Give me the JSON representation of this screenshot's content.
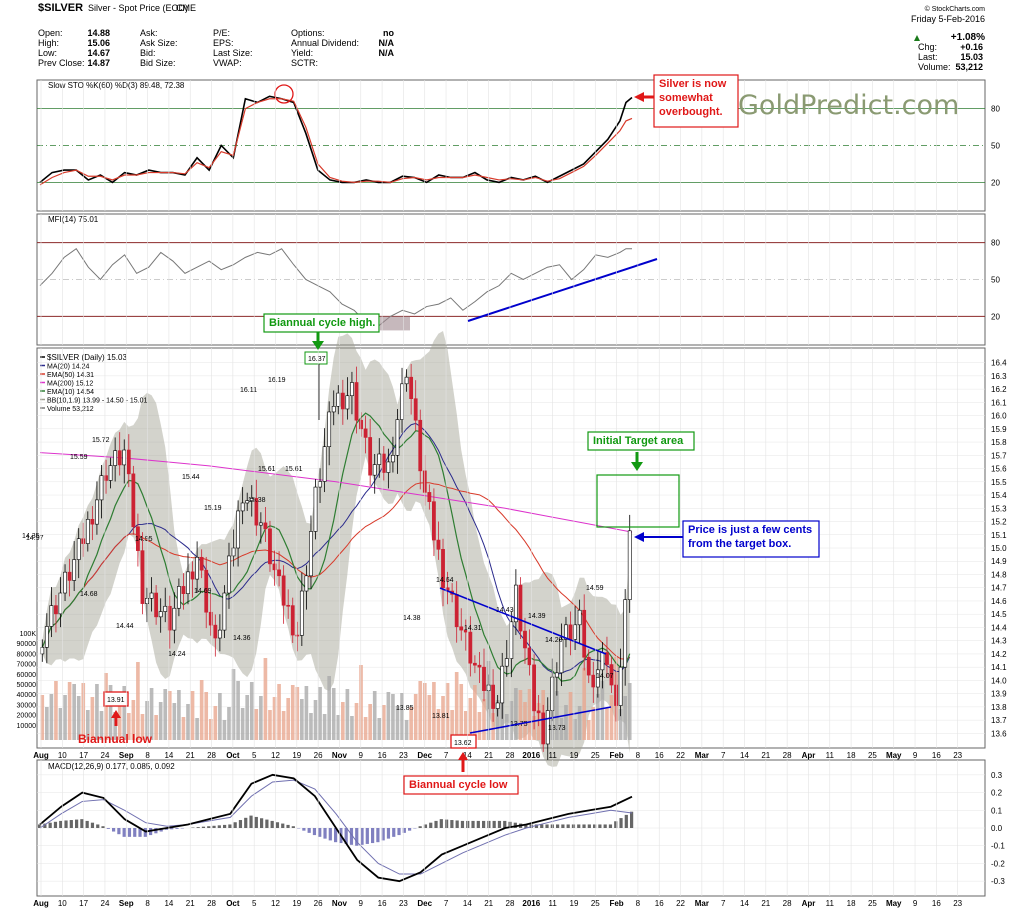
{
  "header": {
    "symbol": "$SILVER",
    "desc": "Silver - Spot Price (EOD)",
    "exch": "CME",
    "credit": "© StockCharts.com",
    "date": "Friday  5-Feb-2016",
    "change_pct": "+1.08%",
    "quote": [
      {
        "k": "Open:",
        "v": "14.88"
      },
      {
        "k": "High:",
        "v": "15.06"
      },
      {
        "k": "Low:",
        "v": "14.67"
      },
      {
        "k": "Prev Close:",
        "v": "14.87"
      }
    ],
    "quote2": [
      {
        "k": "Ask:",
        "v": ""
      },
      {
        "k": "Ask Size:",
        "v": ""
      },
      {
        "k": "Bid:",
        "v": ""
      },
      {
        "k": "Bid Size:",
        "v": ""
      }
    ],
    "quote3": [
      {
        "k": "P/E:",
        "v": ""
      },
      {
        "k": "EPS:",
        "v": ""
      },
      {
        "k": "Last Size:",
        "v": ""
      },
      {
        "k": "VWAP:",
        "v": ""
      }
    ],
    "quote4": [
      {
        "k": "Options:",
        "v": "no"
      },
      {
        "k": "Annual Dividend:",
        "v": "N/A"
      },
      {
        "k": "Yield:",
        "v": "N/A"
      },
      {
        "k": "SCTR:",
        "v": ""
      }
    ],
    "right": [
      {
        "k": "Chg:",
        "v": "+0.16"
      },
      {
        "k": "Last:",
        "v": "15.03"
      },
      {
        "k": "Volume:",
        "v": "53,212"
      }
    ]
  },
  "watermark": "GoldPredict.com",
  "colors": {
    "up": "#000000",
    "down": "#cc2233",
    "ma20": "#2a2a8c",
    "ema50": "#d83a2a",
    "ma200": "#dd33cc",
    "ema10": "#2e7d32",
    "bb": "#9e9e8e",
    "panel": "#ffffff",
    "blue_annot": "#0000cc",
    "red_annot": "#e01818",
    "green_annot": "#119911"
  },
  "x_axis": [
    "Aug",
    "10",
    "17",
    "24",
    "Sep",
    "8",
    "14",
    "21",
    "28",
    "Oct",
    "5",
    "12",
    "19",
    "26",
    "Nov",
    "9",
    "16",
    "23",
    "Dec",
    "7",
    "14",
    "21",
    "28",
    "2016",
    "11",
    "19",
    "25",
    "Feb",
    "8",
    "16",
    "22",
    "Mar",
    "7",
    "14",
    "21",
    "28",
    "Apr",
    "11",
    "18",
    "25",
    "May",
    "9",
    "16",
    "23"
  ],
  "sto_panel": {
    "legend": "Slow STO %K(60) %D(3) 89.48, 72.38",
    "levels": [
      "80",
      "50",
      "20"
    ],
    "annotation": "Silver is now\nsomewhat\noverbought."
  },
  "mfi_panel": {
    "legend": "MFI(14) 75.01",
    "levels": [
      "80",
      "50",
      "20"
    ]
  },
  "price_panel": {
    "legend": [
      "$SILVER (Daily) 15.03",
      "MA(20) 14.24",
      "EMA(50) 14.31",
      "MA(200) 15.12",
      "EMA(10) 14.54",
      "BB(10,1.9) 13.99 - 14.50 - 15.01",
      "Volume 53,212"
    ],
    "y_ticks": [
      "16.4",
      "16.3",
      "16.2",
      "16.1",
      "16.0",
      "15.9",
      "15.8",
      "15.7",
      "15.6",
      "15.5",
      "15.4",
      "15.3",
      "15.2",
      "15.1",
      "15.0",
      "14.9",
      "14.8",
      "14.7",
      "14.6",
      "14.5",
      "14.4",
      "14.3",
      "14.2",
      "14.1",
      "14.0",
      "13.9",
      "13.8",
      "13.7",
      "13.6"
    ],
    "vol_ticks": [
      "100K",
      "90000",
      "80000",
      "70000",
      "60000",
      "50000",
      "40000",
      "30000",
      "20000",
      "10000"
    ],
    "price_labels": [
      "14.35",
      "14.97",
      "15.59",
      "15.72",
      "14.68",
      "14.44",
      "14.95",
      "14.24",
      "15.44",
      "15.19",
      "14.69",
      "14.36",
      "15.38",
      "16.11",
      "16.19",
      "15.61",
      "15.61",
      "16.37",
      "14.38",
      "14.64",
      "13.85",
      "13.81",
      "14.31",
      "14.43",
      "14.39",
      "13.75",
      "14.20",
      "13.73",
      "14.59",
      "14.07",
      "13.91",
      "13.62"
    ],
    "annotations": {
      "cycle_high": "Biannual cycle high.",
      "target": "Initial Target area",
      "price_note": "Price is just a few cents\nfrom the target box.",
      "low1": "Biannual low",
      "low2": "Biannual cycle low"
    }
  },
  "macd_panel": {
    "legend": "MACD(12,26,9) 0.177, 0.085, 0.092",
    "levels": [
      "0.3",
      "0.2",
      "0.1",
      "0.0",
      "-0.1",
      "-0.2",
      "-0.3"
    ]
  },
  "chart_data": [
    {
      "type": "line",
      "title": "Slow STO %K(60) %D(3)",
      "ylim": [
        0,
        100
      ],
      "x": [
        0,
        4,
        8,
        12,
        16,
        20,
        24,
        28,
        32,
        36,
        40,
        44,
        48,
        52,
        56,
        60,
        64,
        68,
        72,
        76,
        80,
        84,
        88,
        92,
        96,
        100,
        104,
        108,
        112,
        116,
        120,
        124,
        128,
        132,
        136,
        140,
        144,
        148,
        152,
        156,
        160,
        164,
        168,
        172,
        176,
        180,
        184,
        188,
        192,
        194,
        196
      ],
      "series": [
        {
          "name": "%K",
          "values": [
            20,
            28,
            30,
            30,
            22,
            26,
            20,
            28,
            26,
            30,
            28,
            28,
            26,
            40,
            30,
            50,
            40,
            88,
            85,
            90,
            88,
            85,
            60,
            30,
            22,
            20,
            20,
            22,
            20,
            20,
            25,
            24,
            20,
            26,
            24,
            24,
            28,
            22,
            20,
            24,
            22,
            25,
            20,
            25,
            30,
            35,
            45,
            55,
            70,
            85,
            89
          ]
        },
        {
          "name": "%D",
          "values": [
            18,
            24,
            28,
            30,
            25,
            25,
            22,
            26,
            26,
            28,
            28,
            28,
            27,
            36,
            32,
            45,
            42,
            80,
            85,
            88,
            88,
            86,
            65,
            35,
            24,
            21,
            20,
            21,
            21,
            20,
            23,
            24,
            22,
            24,
            24,
            24,
            26,
            24,
            22,
            23,
            22,
            24,
            21,
            23,
            28,
            33,
            42,
            52,
            62,
            70,
            72
          ]
        }
      ]
    },
    {
      "type": "line",
      "title": "MFI(14)",
      "ylim": [
        0,
        100
      ],
      "x": [
        0,
        4,
        8,
        12,
        16,
        20,
        24,
        28,
        32,
        36,
        40,
        44,
        48,
        52,
        56,
        60,
        64,
        68,
        72,
        76,
        80,
        84,
        88,
        92,
        96,
        100,
        104,
        108,
        112,
        116,
        120,
        124,
        128,
        132,
        136,
        140,
        144,
        148,
        152,
        156,
        160,
        164,
        168,
        172,
        176,
        180,
        184,
        188,
        192,
        194,
        196
      ],
      "series": [
        {
          "name": "MFI",
          "values": [
            45,
            55,
            68,
            75,
            60,
            50,
            62,
            70,
            55,
            60,
            72,
            65,
            55,
            60,
            65,
            58,
            62,
            68,
            72,
            70,
            75,
            62,
            50,
            45,
            40,
            30,
            25,
            15,
            12,
            20,
            25,
            22,
            28,
            30,
            35,
            25,
            32,
            40,
            45,
            55,
            50,
            55,
            60,
            62,
            50,
            58,
            70,
            68,
            72,
            75,
            75
          ]
        },
        {
          "name": "Trend",
          "values": [
            null,
            null,
            null,
            null,
            null,
            null,
            null,
            null,
            null,
            null,
            null,
            null,
            null,
            null,
            null,
            null,
            null,
            null,
            null,
            null,
            null,
            null,
            null,
            null,
            null,
            null,
            null,
            null,
            null,
            null,
            null,
            null,
            20,
            null,
            null,
            null,
            null,
            null,
            null,
            null,
            null,
            null,
            null,
            null,
            null,
            null,
            null,
            null,
            null,
            null,
            72
          ]
        }
      ]
    },
    {
      "type": "line",
      "title": "$SILVER (Daily)",
      "ylim": [
        13.55,
        16.45
      ],
      "x_labels": [
        "Aug",
        "Sep",
        "Oct",
        "Nov",
        "Dec",
        "2016",
        "Feb"
      ],
      "series": [
        {
          "name": "$SILVER",
          "values": [
            14.35,
            14.97,
            15.59,
            15.72,
            14.68,
            14.44,
            14.95,
            14.24,
            15.44,
            15.19,
            14.69,
            14.36,
            15.38,
            16.11,
            16.19,
            15.61,
            15.61,
            16.37,
            14.38,
            14.64,
            13.85,
            13.81,
            14.31,
            14.43,
            14.39,
            13.75,
            14.2,
            13.73,
            14.59,
            14.07,
            13.91,
            13.62,
            15.03
          ]
        },
        {
          "name": "MA(200)",
          "values": [
            15.72,
            15.7,
            15.68,
            15.65,
            15.62,
            15.58,
            15.54,
            15.5,
            15.45,
            15.4,
            15.35,
            15.3,
            15.24,
            15.18,
            15.12
          ]
        }
      ]
    },
    {
      "type": "bar",
      "title": "MACD(12,26,9)",
      "ylim": [
        -0.35,
        0.35
      ],
      "series": [
        {
          "name": "MACD",
          "values": [
            0.02,
            0.12,
            0.2,
            0.17,
            0.05,
            -0.02,
            0.0,
            0.02,
            0.05,
            0.08,
            0.25,
            0.3,
            0.28,
            0.18,
            0.0,
            -0.18,
            -0.28,
            -0.3,
            -0.25,
            -0.15,
            -0.1,
            -0.05,
            0.0,
            0.02,
            0.05,
            0.08,
            0.1,
            0.12,
            0.177
          ]
        },
        {
          "name": "Signal",
          "values": [
            0.0,
            0.08,
            0.15,
            0.16,
            0.1,
            0.03,
            0.01,
            0.02,
            0.04,
            0.06,
            0.18,
            0.26,
            0.27,
            0.22,
            0.08,
            -0.08,
            -0.2,
            -0.26,
            -0.26,
            -0.2,
            -0.14,
            -0.09,
            -0.04,
            0.0,
            0.03,
            0.06,
            0.08,
            0.1,
            0.085
          ]
        },
        {
          "name": "Histogram",
          "values": [
            0.02,
            0.04,
            0.05,
            0.01,
            -0.05,
            -0.05,
            -0.01,
            0.0,
            0.01,
            0.02,
            0.07,
            0.04,
            0.01,
            -0.04,
            -0.08,
            -0.1,
            -0.08,
            -0.04,
            0.01,
            0.05,
            0.04,
            0.04,
            0.04,
            0.02,
            0.02,
            0.02,
            0.02,
            0.02,
            0.092
          ]
        }
      ]
    }
  ]
}
